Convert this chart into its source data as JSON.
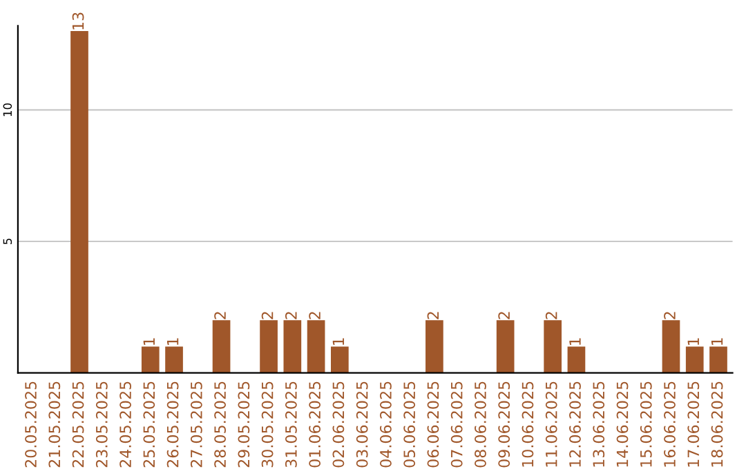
{
  "chart_data": {
    "type": "bar",
    "categories": [
      "20.05.2025",
      "21.05.2025",
      "22.05.2025",
      "23.05.2025",
      "24.05.2025",
      "25.05.2025",
      "26.05.2025",
      "27.05.2025",
      "28.05.2025",
      "29.05.2025",
      "30.05.2025",
      "31.05.2025",
      "01.06.2025",
      "02.06.2025",
      "03.06.2025",
      "04.06.2025",
      "05.06.2025",
      "06.06.2025",
      "07.06.2025",
      "08.06.2025",
      "09.06.2025",
      "10.06.2025",
      "11.06.2025",
      "12.06.2025",
      "13.06.2025",
      "14.06.2025",
      "15.06.2025",
      "16.06.2025",
      "17.06.2025",
      "18.06.2025"
    ],
    "values": [
      0,
      0,
      13,
      0,
      0,
      1,
      1,
      0,
      2,
      0,
      2,
      2,
      2,
      1,
      0,
      0,
      0,
      2,
      0,
      0,
      2,
      0,
      2,
      1,
      0,
      0,
      0,
      2,
      1,
      1
    ],
    "value_labels": [
      null,
      null,
      "13",
      null,
      null,
      "1",
      "1",
      null,
      "2",
      null,
      "2",
      "2",
      "2",
      "1",
      null,
      null,
      null,
      "2",
      null,
      null,
      "2",
      null,
      "2",
      "1",
      null,
      null,
      null,
      "2",
      "1",
      "1"
    ],
    "color": "#a0572a",
    "ylim": [
      0,
      13.2
    ],
    "yticks": [
      5,
      10
    ],
    "grid": "y"
  }
}
